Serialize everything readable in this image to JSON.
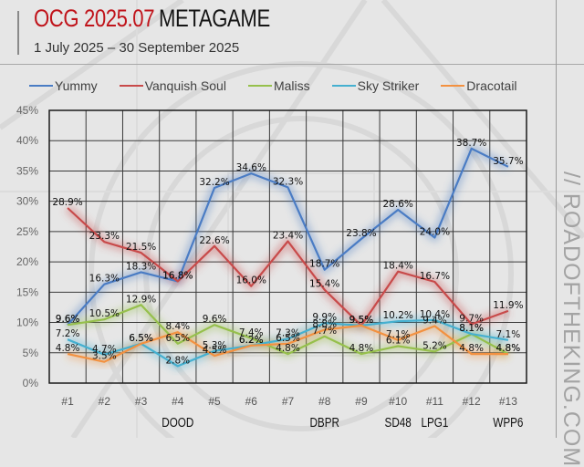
{
  "header": {
    "title_accent": "OCG 2025.07",
    "title_main": "METAGAME",
    "subtitle": "1 July 2025 – 30 September 2025",
    "watermark": "// ROADOFTHEKING.COM"
  },
  "colors": {
    "accent_red": "#c0141b",
    "Yummy": "#4a7cc4",
    "Vanquish Soul": "#c84a4a",
    "Maliss": "#96c04c",
    "Sky Striker": "#45b0d0",
    "Dracotail": "#f39140"
  },
  "chart_data": {
    "type": "line",
    "title": "OCG 2025.07 METAGAME",
    "subtitle": "1 July 2025 – 30 September 2025",
    "xlabel": "",
    "ylabel": "",
    "ylim": [
      0,
      45
    ],
    "y_ticks": [
      0,
      5,
      10,
      15,
      20,
      25,
      30,
      35,
      40,
      45
    ],
    "y_tick_labels": [
      "0%",
      "5%",
      "10%",
      "15%",
      "20%",
      "25%",
      "30%",
      "35%",
      "40%",
      "45%"
    ],
    "grid": true,
    "legend_position": "top",
    "categories": [
      "#1",
      "#2",
      "#3",
      "#4",
      "#5",
      "#6",
      "#7",
      "#8",
      "#9",
      "#10",
      "#11",
      "#12",
      "#13"
    ],
    "set_annotations": [
      {
        "category_index": 3,
        "label": "DOOD"
      },
      {
        "category_index": 7,
        "label": "DBPR"
      },
      {
        "category_index": 9,
        "label": "SD48"
      },
      {
        "category_index": 10,
        "label": "LPG1"
      },
      {
        "category_index": 12,
        "label": "WPP6"
      }
    ],
    "series": [
      {
        "name": "Yummy",
        "color": "#4a7cc4",
        "values": [
          9.6,
          16.3,
          18.3,
          16.8,
          32.2,
          34.6,
          32.3,
          18.7,
          23.8,
          28.6,
          24.0,
          38.7,
          35.7
        ]
      },
      {
        "name": "Vanquish Soul",
        "color": "#c84a4a",
        "values": [
          28.9,
          23.3,
          21.5,
          16.8,
          22.6,
          16.0,
          23.4,
          15.4,
          9.5,
          18.4,
          16.7,
          9.7,
          11.9
        ]
      },
      {
        "name": "Maliss",
        "color": "#96c04c",
        "values": [
          9.6,
          10.5,
          12.9,
          6.5,
          9.6,
          7.4,
          4.8,
          7.7,
          4.8,
          6.1,
          5.2,
          8.1,
          4.8
        ]
      },
      {
        "name": "Sky Striker",
        "color": "#45b0d0",
        "values": [
          7.2,
          4.7,
          6.5,
          2.8,
          5.3,
          6.2,
          7.3,
          9.9,
          9.5,
          10.2,
          10.4,
          8.1,
          7.1
        ]
      },
      {
        "name": "Dracotail",
        "color": "#f39140",
        "values": [
          4.8,
          3.5,
          6.5,
          8.4,
          4.5,
          6.2,
          6.5,
          8.8,
          9.5,
          7.1,
          9.4,
          4.8,
          4.8
        ]
      }
    ]
  }
}
